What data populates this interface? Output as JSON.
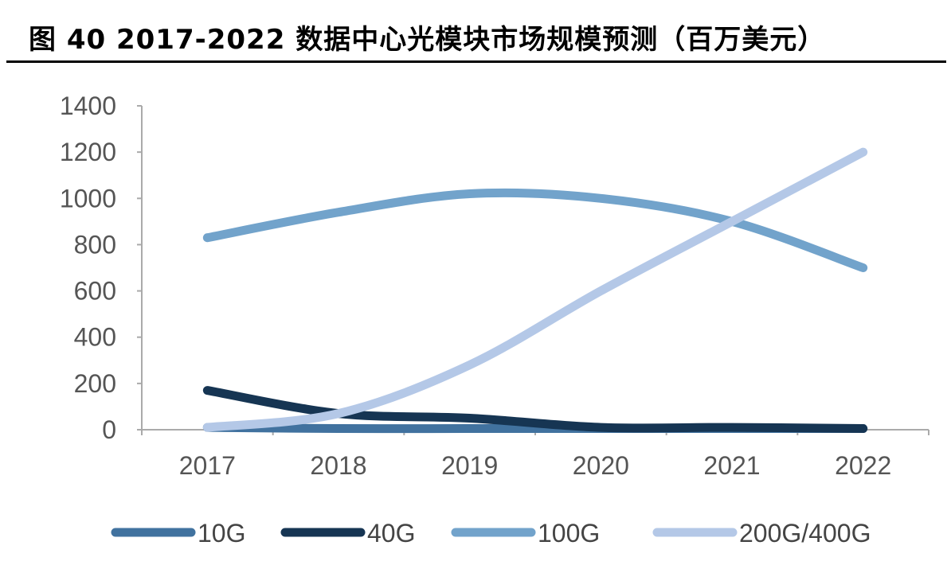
{
  "title": "图 40 2017-2022 数据中心光模块市场规模预测（百万美元）",
  "chart_data": {
    "type": "line",
    "title": "图 40 2017-2022 数据中心光模块市场规模预测（百万美元）",
    "categories": [
      "2017",
      "2018",
      "2019",
      "2020",
      "2021",
      "2022"
    ],
    "ylim": [
      0,
      1400
    ],
    "yticks": [
      0,
      200,
      400,
      600,
      800,
      1000,
      1200,
      1400
    ],
    "ytick_labels": [
      "0",
      "200",
      "400",
      "600",
      "800",
      "1000",
      "1200",
      "1400"
    ],
    "grid": false,
    "legend_position": "bottom",
    "series": [
      {
        "name": "10G",
        "color": "#41729f",
        "values": [
          10,
          5,
          5,
          5,
          5,
          5
        ]
      },
      {
        "name": "40G",
        "color": "#163553",
        "values": [
          170,
          70,
          50,
          10,
          10,
          5
        ]
      },
      {
        "name": "100G",
        "color": "#72a3cb",
        "values": [
          830,
          940,
          1020,
          1000,
          900,
          700
        ]
      },
      {
        "name": "200G/400G",
        "color": "#b4c8e7",
        "values": [
          10,
          70,
          280,
          600,
          900,
          1200
        ]
      }
    ]
  }
}
